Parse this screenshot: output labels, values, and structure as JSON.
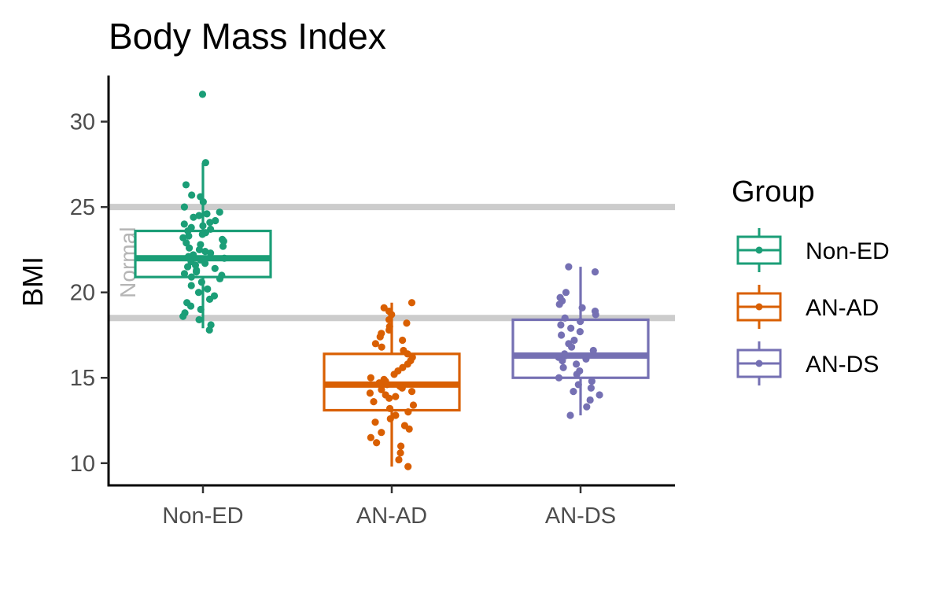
{
  "chart_data": {
    "type": "box",
    "title": "Body Mass Index",
    "xlabel": "",
    "ylabel": "BMI",
    "ylim": [
      8.7,
      32.7
    ],
    "y_ticks": [
      10,
      15,
      20,
      25,
      30
    ],
    "categories": [
      "Non-ED",
      "AN-AD",
      "AN-DS"
    ],
    "reference_lines": [
      18.5,
      25
    ],
    "reference_band_label": "Normal",
    "reference_color": "#cccccc",
    "legend": {
      "title": "Group",
      "position": "right"
    },
    "grid": false,
    "groups": [
      {
        "name": "Non-ED",
        "color": "#1b9e77",
        "box": {
          "whisker_low": 17.9,
          "q1": 20.9,
          "median": 22.0,
          "q3": 23.6,
          "whisker_high": 27.6
        },
        "points": [
          31.6,
          27.6,
          26.3,
          25.7,
          25.6,
          25.3,
          25.0,
          24.7,
          24.6,
          24.5,
          24.4,
          24.2,
          24.1,
          24.0,
          23.9,
          23.8,
          23.7,
          23.6,
          23.5,
          23.4,
          23.3,
          23.2,
          23.1,
          23.0,
          22.9,
          22.8,
          22.7,
          22.6,
          22.5,
          22.4,
          22.3,
          22.2,
          22.1,
          22.0,
          21.9,
          21.8,
          21.7,
          21.6,
          21.5,
          21.4,
          21.3,
          21.2,
          21.1,
          21.0,
          20.9,
          20.8,
          20.6,
          20.4,
          20.2,
          20.0,
          19.8,
          19.6,
          19.4,
          19.2,
          19.0,
          18.8,
          18.6,
          18.4,
          18.1,
          17.8
        ]
      },
      {
        "name": "AN-AD",
        "color": "#d95f02",
        "box": {
          "whisker_low": 9.8,
          "q1": 13.1,
          "median": 14.6,
          "q3": 16.4,
          "whisker_high": 19.4
        },
        "points": [
          19.4,
          19.1,
          18.9,
          18.7,
          18.4,
          18.2,
          18.0,
          17.8,
          17.6,
          17.4,
          17.2,
          17.0,
          16.8,
          16.6,
          16.4,
          16.2,
          16.0,
          15.8,
          15.6,
          15.4,
          15.2,
          15.0,
          14.9,
          14.8,
          14.7,
          14.6,
          14.5,
          14.4,
          14.3,
          14.2,
          14.1,
          14.0,
          13.9,
          13.8,
          13.6,
          13.4,
          13.2,
          13.0,
          12.8,
          12.6,
          12.4,
          12.2,
          12.0,
          11.8,
          11.5,
          11.2,
          11.0,
          10.6,
          10.2,
          9.8
        ]
      },
      {
        "name": "AN-DS",
        "color": "#7570b3",
        "box": {
          "whisker_low": 12.8,
          "q1": 15.0,
          "median": 16.3,
          "q3": 18.4,
          "whisker_high": 21.5
        },
        "points": [
          21.5,
          21.2,
          20.0,
          19.7,
          19.5,
          19.3,
          19.1,
          18.9,
          18.7,
          18.5,
          18.3,
          18.1,
          17.9,
          17.7,
          17.5,
          17.2,
          17.0,
          16.8,
          16.6,
          16.4,
          16.3,
          16.2,
          16.1,
          16.0,
          15.8,
          15.6,
          15.4,
          15.2,
          15.0,
          14.8,
          14.6,
          14.4,
          14.2,
          14.0,
          13.7,
          13.3,
          12.8
        ]
      }
    ]
  }
}
